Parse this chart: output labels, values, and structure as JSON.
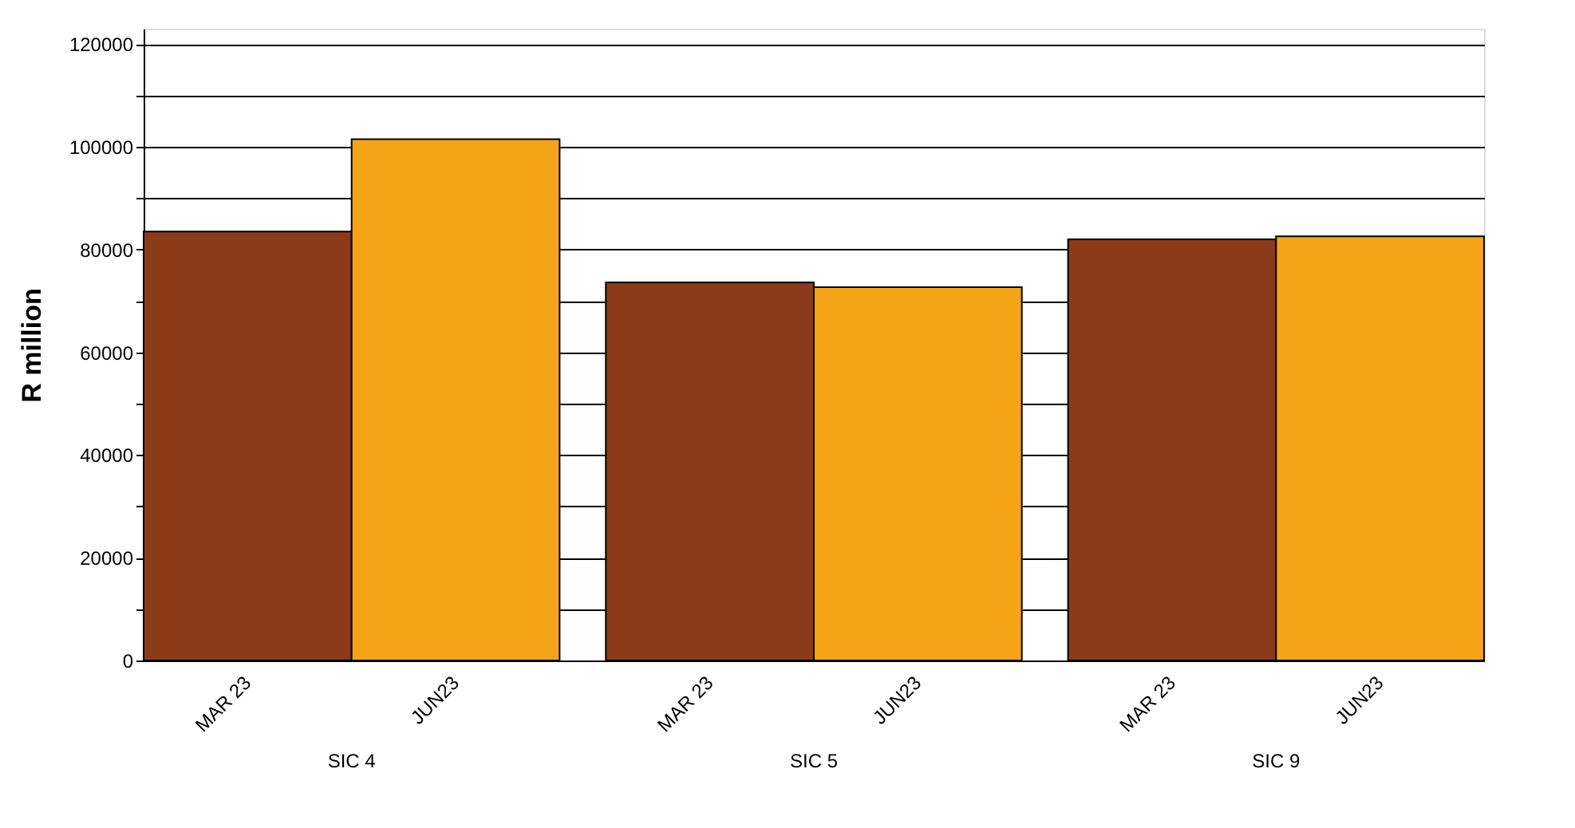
{
  "chart_data": {
    "type": "bar",
    "ylabel": "R million",
    "categories": [
      "SIC 4",
      "SIC 5",
      "SIC 9"
    ],
    "series": [
      {
        "name": "MAR 23",
        "color": "#8b3a1a",
        "values": [
          83500,
          73600,
          82000
        ]
      },
      {
        "name": "JUN23",
        "color": "#f5a418",
        "values": [
          101500,
          72700,
          82600
        ]
      }
    ],
    "ylim": [
      0,
      123000
    ],
    "yticks": [
      0,
      {
        "value": 10000,
        "label": null
      },
      20000,
      {
        "value": 30000,
        "label": null
      },
      40000,
      {
        "value": 50000,
        "label": null
      },
      60000,
      {
        "value": 70000,
        "label": null
      },
      80000,
      {
        "value": 90000,
        "label": null
      },
      100000,
      {
        "value": 110000,
        "label": null
      },
      120000
    ],
    "grid": "y",
    "legend": false
  }
}
